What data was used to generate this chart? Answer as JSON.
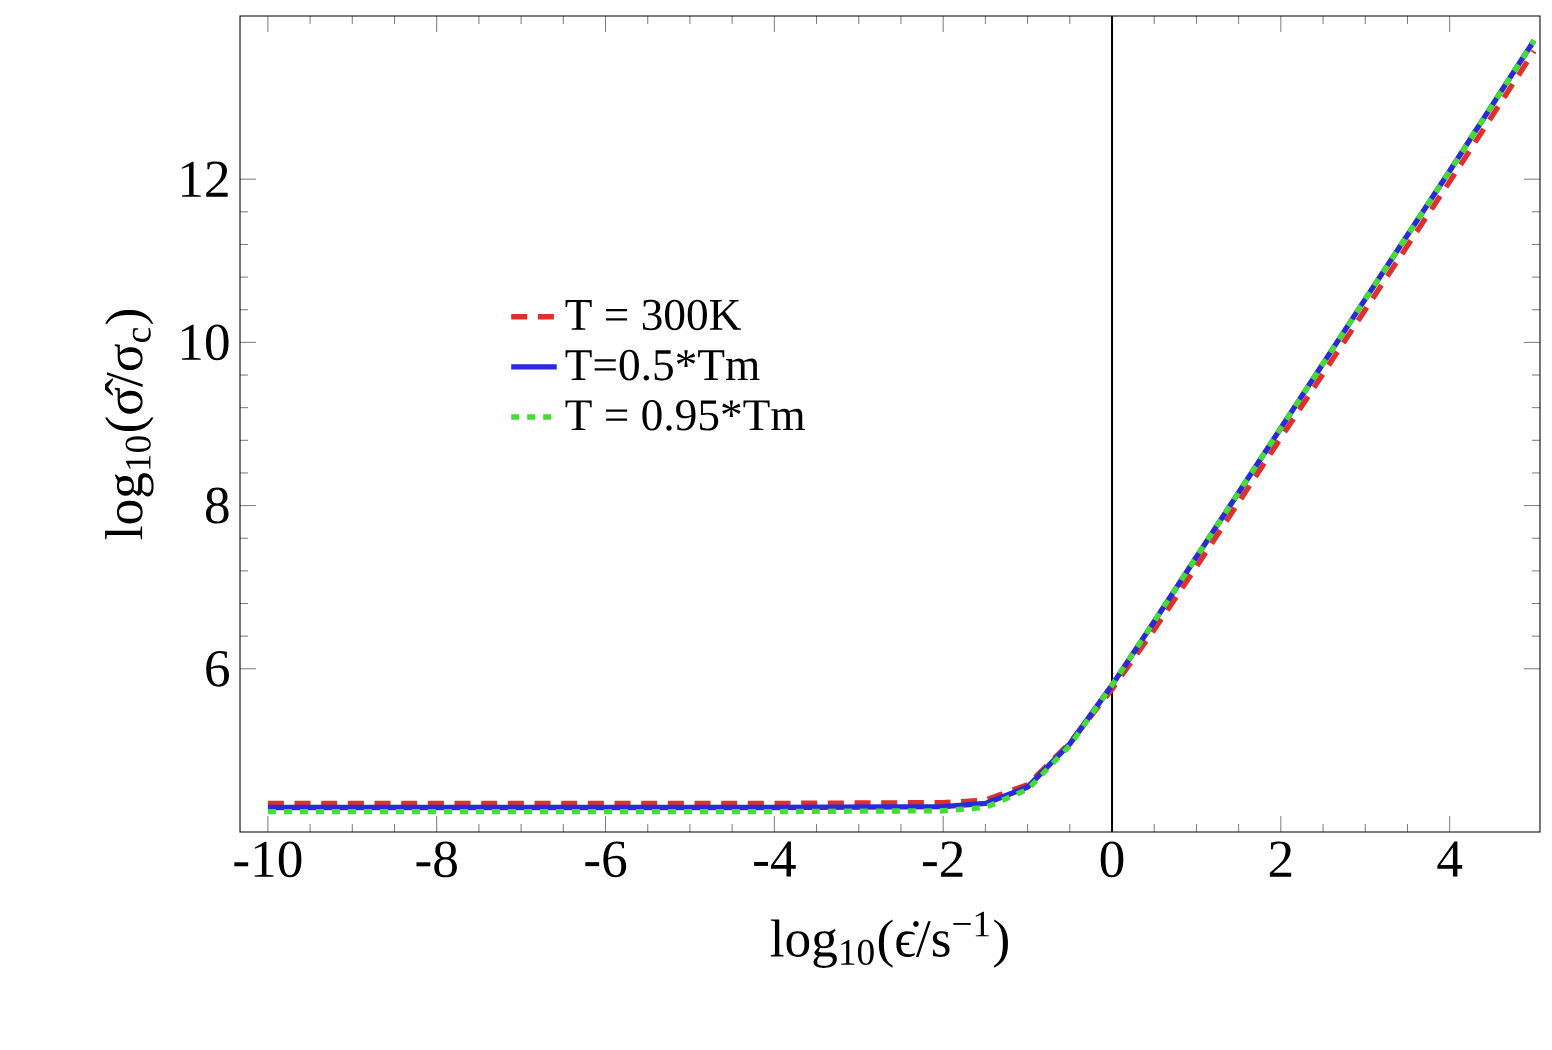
{
  "chart_data": {
    "type": "line",
    "xlabel": "log$_{10}$(ϵ̇/s$^{−1}$)",
    "ylabel": "log$_{10}$(σ̂/σ$_{c}$)",
    "x": [
      -10,
      -6,
      -4,
      -2,
      -1.5,
      -1,
      -0.5,
      0,
      0.5,
      1,
      2,
      3,
      4,
      5
    ],
    "series": [
      {
        "name": "T = 300K",
        "color": "#e0302a",
        "line_style": "dashed",
        "values": [
          4.35,
          4.35,
          4.35,
          4.36,
          4.39,
          4.58,
          5.09,
          5.75,
          6.48,
          7.25,
          8.83,
          10.4,
          11.97,
          13.57
        ]
      },
      {
        "name": "T=0.5*Tm",
        "color": "#2a2ad8",
        "line_style": "solid",
        "values": [
          4.3,
          4.3,
          4.3,
          4.31,
          4.35,
          4.55,
          5.08,
          5.8,
          6.58,
          7.37,
          8.95,
          10.53,
          12.1,
          13.7
        ]
      },
      {
        "name": "T = 0.95*Tm",
        "color": "#44dd33",
        "line_style": "dotted",
        "values": [
          4.25,
          4.25,
          4.25,
          4.26,
          4.3,
          4.52,
          5.06,
          5.8,
          6.58,
          7.37,
          8.95,
          10.53,
          12.1,
          13.7
        ]
      }
    ],
    "xlim": [
      -10.33,
      5.07
    ],
    "ylim": [
      4.0,
      14.0
    ],
    "xticks": [
      -10,
      -8,
      -6,
      -4,
      -2,
      0,
      2,
      4
    ],
    "yticks": [
      6,
      8,
      10,
      12
    ],
    "ref_lines": [
      {
        "axis": "x",
        "value": 0,
        "color": "#000000"
      }
    ],
    "legend": "left",
    "grid": false,
    "marker": "none"
  }
}
